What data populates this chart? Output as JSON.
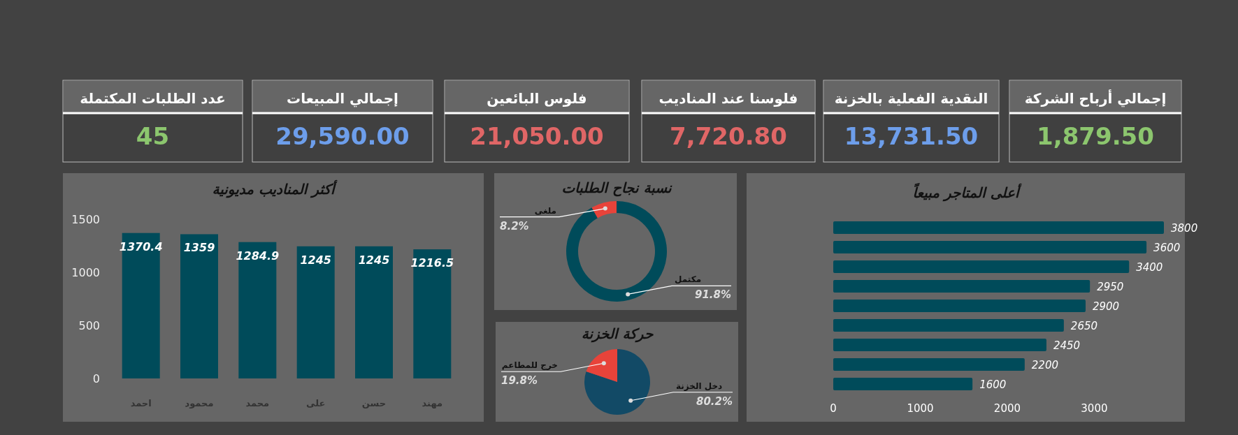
{
  "chart_data": [
    {
      "type": "other",
      "title": "إجمالي أرباح الشركة",
      "annotations": [
        "1,879.50"
      ],
      "colors": [
        "#8cc66e"
      ]
    },
    {
      "type": "other",
      "title": "النقدية الفعلية بالخزنة",
      "annotations": [
        "13,731.50"
      ],
      "colors": [
        "#6d9eeb"
      ]
    },
    {
      "type": "other",
      "title": "فلوسنا عند المناديب",
      "annotations": [
        "7,720.80"
      ],
      "colors": [
        "#e06666"
      ]
    },
    {
      "type": "other",
      "title": "فلوس البائعين",
      "annotations": [
        "21,050.00"
      ],
      "colors": [
        "#e06666"
      ]
    },
    {
      "type": "other",
      "title": "إجمالي المبيعات",
      "annotations": [
        "29,590.00"
      ],
      "colors": [
        "#6d9eeb"
      ]
    },
    {
      "type": "other",
      "title": "عدد الطلبات المكتملة",
      "annotations": [
        "45"
      ],
      "colors": [
        "#8cc66e"
      ]
    },
    {
      "type": "bar",
      "orientation": "horizontal",
      "title": "أعلى المتاجر مبيعاً",
      "categories": [
        null,
        null,
        null,
        null,
        null,
        null,
        null,
        null,
        null
      ],
      "values": [
        3800,
        3600,
        3400,
        2950,
        2900,
        2650,
        2450,
        2200,
        1600
      ],
      "color": "#004b5a",
      "xlim": [
        0,
        3800
      ],
      "xticks": [
        0,
        1000,
        2000,
        3000
      ],
      "data_labels": true
    },
    {
      "type": "donut",
      "title": "نسبة نجاح الطلبات",
      "categories": [
        "مكتمل",
        "ملغى"
      ],
      "values": [
        91.8,
        8.2
      ],
      "colors": [
        "#004b5a",
        "#e8433a"
      ],
      "value_labels": [
        "91.8%",
        "8.2%"
      ]
    },
    {
      "type": "pie",
      "title": "حركة الخزنة",
      "categories": [
        "دخل الخزنة",
        "خرج للمطاعم"
      ],
      "values": [
        80.2,
        19.8
      ],
      "colors": [
        "#124a66",
        "#e8433a"
      ],
      "value_labels": [
        "80.2%",
        "19.8%"
      ]
    },
    {
      "type": "bar",
      "title": "أكثر المناديب مديونية",
      "categories": [
        "احمد",
        "محمود",
        "محمد",
        "على",
        "حسن",
        "مهند"
      ],
      "values": [
        1370.4,
        1359,
        1284.9,
        1245,
        1245,
        1216.5
      ],
      "color": "#004b5a",
      "ylim": [
        0,
        1500
      ],
      "yticks": [
        0,
        500,
        1000,
        1500
      ],
      "data_labels": true
    }
  ]
}
